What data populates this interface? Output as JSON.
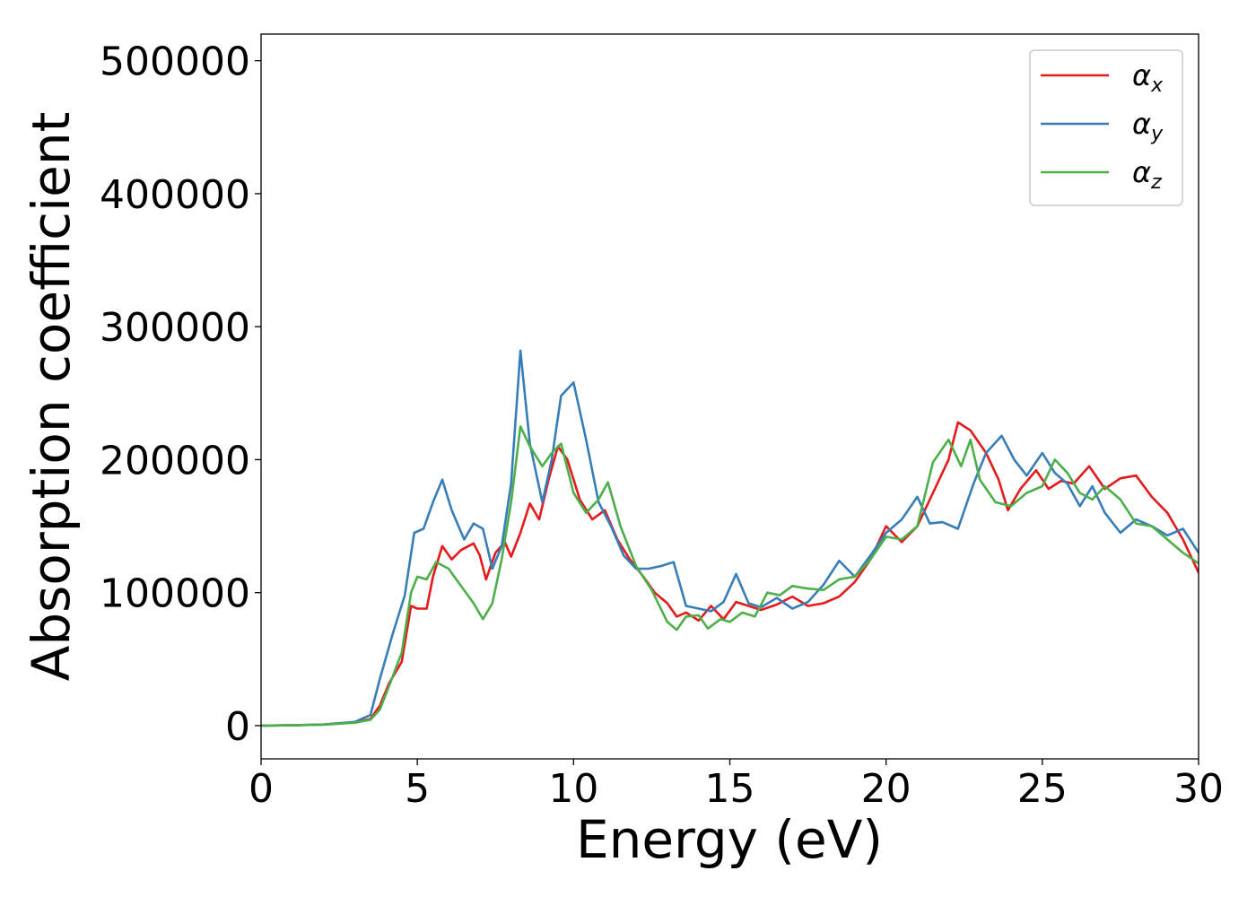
{
  "chart_data": {
    "type": "line",
    "title": "",
    "xlabel": "Energy (eV)",
    "ylabel": "Absorption coefficient",
    "xlim": [
      0,
      30
    ],
    "ylim": [
      -25000,
      520000
    ],
    "xticks": [
      0,
      5,
      10,
      15,
      20,
      25,
      30
    ],
    "yticks": [
      0,
      100000,
      200000,
      300000,
      400000,
      500000
    ],
    "xtick_labels": [
      "0",
      "5",
      "10",
      "15",
      "20",
      "25",
      "30"
    ],
    "ytick_labels": [
      "0",
      "100000",
      "200000",
      "300000",
      "400000",
      "500000"
    ],
    "grid": false,
    "legend_position": "top-right",
    "series": [
      {
        "name": "αx",
        "symbol": "α",
        "subscript": "x",
        "color": "#e41a1c",
        "points": [
          [
            0,
            0
          ],
          [
            1,
            200
          ],
          [
            2,
            800
          ],
          [
            3,
            2500
          ],
          [
            3.5,
            5000
          ],
          [
            3.8,
            15000
          ],
          [
            4.1,
            32000
          ],
          [
            4.5,
            48000
          ],
          [
            4.8,
            90000
          ],
          [
            5.0,
            88000
          ],
          [
            5.3,
            88000
          ],
          [
            5.5,
            112000
          ],
          [
            5.8,
            135000
          ],
          [
            6.1,
            125000
          ],
          [
            6.4,
            132000
          ],
          [
            6.8,
            137000
          ],
          [
            7.0,
            128000
          ],
          [
            7.2,
            110000
          ],
          [
            7.5,
            130000
          ],
          [
            7.8,
            138000
          ],
          [
            8.0,
            127000
          ],
          [
            8.3,
            145000
          ],
          [
            8.6,
            167000
          ],
          [
            8.9,
            155000
          ],
          [
            9.2,
            185000
          ],
          [
            9.5,
            210000
          ],
          [
            9.8,
            200000
          ],
          [
            10.2,
            170000
          ],
          [
            10.6,
            155000
          ],
          [
            11.0,
            162000
          ],
          [
            11.4,
            140000
          ],
          [
            11.8,
            125000
          ],
          [
            12.2,
            113000
          ],
          [
            12.6,
            100000
          ],
          [
            13.0,
            92000
          ],
          [
            13.3,
            82000
          ],
          [
            13.6,
            85000
          ],
          [
            14.0,
            79000
          ],
          [
            14.4,
            90000
          ],
          [
            14.8,
            80000
          ],
          [
            15.2,
            93000
          ],
          [
            15.6,
            90000
          ],
          [
            16.0,
            87000
          ],
          [
            16.5,
            91000
          ],
          [
            17.0,
            97000
          ],
          [
            17.5,
            90000
          ],
          [
            18.0,
            92000
          ],
          [
            18.5,
            97000
          ],
          [
            19.0,
            108000
          ],
          [
            19.5,
            125000
          ],
          [
            20.0,
            150000
          ],
          [
            20.5,
            138000
          ],
          [
            21.0,
            150000
          ],
          [
            21.5,
            175000
          ],
          [
            22.0,
            200000
          ],
          [
            22.3,
            228000
          ],
          [
            22.7,
            222000
          ],
          [
            23.2,
            205000
          ],
          [
            23.6,
            185000
          ],
          [
            23.9,
            162000
          ],
          [
            24.3,
            178000
          ],
          [
            24.8,
            192000
          ],
          [
            25.2,
            178000
          ],
          [
            25.6,
            184000
          ],
          [
            26.0,
            182000
          ],
          [
            26.5,
            195000
          ],
          [
            27.0,
            178000
          ],
          [
            27.5,
            186000
          ],
          [
            28.0,
            188000
          ],
          [
            28.5,
            172000
          ],
          [
            29.0,
            160000
          ],
          [
            29.5,
            140000
          ],
          [
            30.0,
            115000
          ]
        ]
      },
      {
        "name": "αy",
        "symbol": "α",
        "subscript": "y",
        "color": "#377eb8",
        "points": [
          [
            0,
            0
          ],
          [
            1,
            200
          ],
          [
            2,
            800
          ],
          [
            3,
            2800
          ],
          [
            3.5,
            8000
          ],
          [
            3.8,
            35000
          ],
          [
            4.2,
            68000
          ],
          [
            4.6,
            98000
          ],
          [
            4.9,
            145000
          ],
          [
            5.2,
            148000
          ],
          [
            5.5,
            168000
          ],
          [
            5.8,
            185000
          ],
          [
            6.1,
            162000
          ],
          [
            6.5,
            140000
          ],
          [
            6.8,
            152000
          ],
          [
            7.1,
            148000
          ],
          [
            7.4,
            118000
          ],
          [
            7.7,
            135000
          ],
          [
            8.0,
            182000
          ],
          [
            8.3,
            282000
          ],
          [
            8.6,
            212000
          ],
          [
            9.0,
            168000
          ],
          [
            9.3,
            200000
          ],
          [
            9.6,
            248000
          ],
          [
            10.0,
            258000
          ],
          [
            10.4,
            215000
          ],
          [
            10.8,
            168000
          ],
          [
            11.2,
            150000
          ],
          [
            11.6,
            128000
          ],
          [
            12.0,
            118000
          ],
          [
            12.4,
            118000
          ],
          [
            12.8,
            120000
          ],
          [
            13.2,
            123000
          ],
          [
            13.6,
            90000
          ],
          [
            14.0,
            88000
          ],
          [
            14.4,
            86000
          ],
          [
            14.8,
            93000
          ],
          [
            15.2,
            114000
          ],
          [
            15.6,
            92000
          ],
          [
            16.0,
            89000
          ],
          [
            16.5,
            96000
          ],
          [
            17.0,
            88000
          ],
          [
            17.5,
            93000
          ],
          [
            18.0,
            106000
          ],
          [
            18.5,
            124000
          ],
          [
            19.0,
            112000
          ],
          [
            19.5,
            128000
          ],
          [
            20.0,
            145000
          ],
          [
            20.5,
            155000
          ],
          [
            21.0,
            172000
          ],
          [
            21.4,
            152000
          ],
          [
            21.8,
            153000
          ],
          [
            22.3,
            148000
          ],
          [
            22.8,
            182000
          ],
          [
            23.2,
            205000
          ],
          [
            23.7,
            218000
          ],
          [
            24.1,
            200000
          ],
          [
            24.5,
            188000
          ],
          [
            25.0,
            205000
          ],
          [
            25.4,
            190000
          ],
          [
            25.8,
            182000
          ],
          [
            26.2,
            165000
          ],
          [
            26.6,
            180000
          ],
          [
            27.0,
            160000
          ],
          [
            27.5,
            145000
          ],
          [
            28.0,
            155000
          ],
          [
            28.5,
            150000
          ],
          [
            29.0,
            143000
          ],
          [
            29.5,
            148000
          ],
          [
            30.0,
            130000
          ]
        ]
      },
      {
        "name": "αz",
        "symbol": "α",
        "subscript": "z",
        "color": "#4daf4a",
        "points": [
          [
            0,
            0
          ],
          [
            1,
            200
          ],
          [
            2,
            700
          ],
          [
            3,
            2200
          ],
          [
            3.5,
            4500
          ],
          [
            3.8,
            12000
          ],
          [
            4.1,
            30000
          ],
          [
            4.5,
            55000
          ],
          [
            4.8,
            100000
          ],
          [
            5.0,
            112000
          ],
          [
            5.3,
            110000
          ],
          [
            5.6,
            123000
          ],
          [
            6.0,
            118000
          ],
          [
            6.4,
            105000
          ],
          [
            6.8,
            92000
          ],
          [
            7.1,
            80000
          ],
          [
            7.4,
            92000
          ],
          [
            7.7,
            125000
          ],
          [
            8.0,
            168000
          ],
          [
            8.3,
            225000
          ],
          [
            8.6,
            210000
          ],
          [
            9.0,
            195000
          ],
          [
            9.3,
            205000
          ],
          [
            9.6,
            212000
          ],
          [
            10.0,
            175000
          ],
          [
            10.4,
            160000
          ],
          [
            10.8,
            170000
          ],
          [
            11.1,
            183000
          ],
          [
            11.5,
            150000
          ],
          [
            12.0,
            120000
          ],
          [
            12.5,
            102000
          ],
          [
            13.0,
            78000
          ],
          [
            13.3,
            72000
          ],
          [
            13.6,
            82000
          ],
          [
            14.0,
            83000
          ],
          [
            14.3,
            73000
          ],
          [
            14.7,
            80000
          ],
          [
            15.0,
            78000
          ],
          [
            15.4,
            85000
          ],
          [
            15.8,
            82000
          ],
          [
            16.2,
            100000
          ],
          [
            16.6,
            98000
          ],
          [
            17.0,
            105000
          ],
          [
            17.5,
            103000
          ],
          [
            18.0,
            102000
          ],
          [
            18.5,
            110000
          ],
          [
            19.0,
            112000
          ],
          [
            19.5,
            125000
          ],
          [
            20.0,
            142000
          ],
          [
            20.5,
            140000
          ],
          [
            21.0,
            150000
          ],
          [
            21.5,
            198000
          ],
          [
            22.0,
            215000
          ],
          [
            22.4,
            195000
          ],
          [
            22.7,
            215000
          ],
          [
            23.0,
            185000
          ],
          [
            23.5,
            168000
          ],
          [
            24.0,
            165000
          ],
          [
            24.5,
            175000
          ],
          [
            25.0,
            180000
          ],
          [
            25.4,
            200000
          ],
          [
            25.8,
            190000
          ],
          [
            26.2,
            175000
          ],
          [
            26.6,
            170000
          ],
          [
            27.0,
            180000
          ],
          [
            27.5,
            170000
          ],
          [
            28.0,
            152000
          ],
          [
            28.5,
            150000
          ],
          [
            29.0,
            140000
          ],
          [
            29.5,
            130000
          ],
          [
            30.0,
            122000
          ]
        ]
      }
    ]
  }
}
